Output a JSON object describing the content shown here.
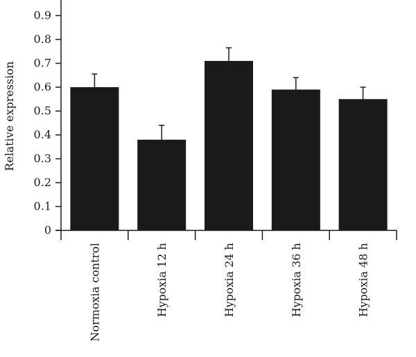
{
  "chart_data": {
    "type": "bar",
    "title": "",
    "xlabel": "",
    "ylabel": "Relative expression",
    "ylim": [
      0,
      0.95
    ],
    "yticks": [
      0,
      0.1,
      0.2,
      0.3,
      0.4,
      0.5,
      0.6,
      0.7,
      0.8,
      0.9
    ],
    "ytick_labels": [
      "0",
      "0.1",
      "0.2",
      "0.3",
      "0.4",
      "0.5",
      "0.6",
      "0.7",
      "0.8",
      "0.9"
    ],
    "categories": [
      "Normoxia control",
      "Hypoxia 12 h",
      "Hypoxia 24 h",
      "Hypoxia 36 h",
      "Hypoxia 48 h"
    ],
    "values": [
      0.6,
      0.38,
      0.71,
      0.59,
      0.55
    ],
    "errors": [
      0.055,
      0.06,
      0.055,
      0.05,
      0.05
    ],
    "grid": false,
    "bar_color": "#1a1a1a",
    "axis_color": "#1a1a1a"
  }
}
